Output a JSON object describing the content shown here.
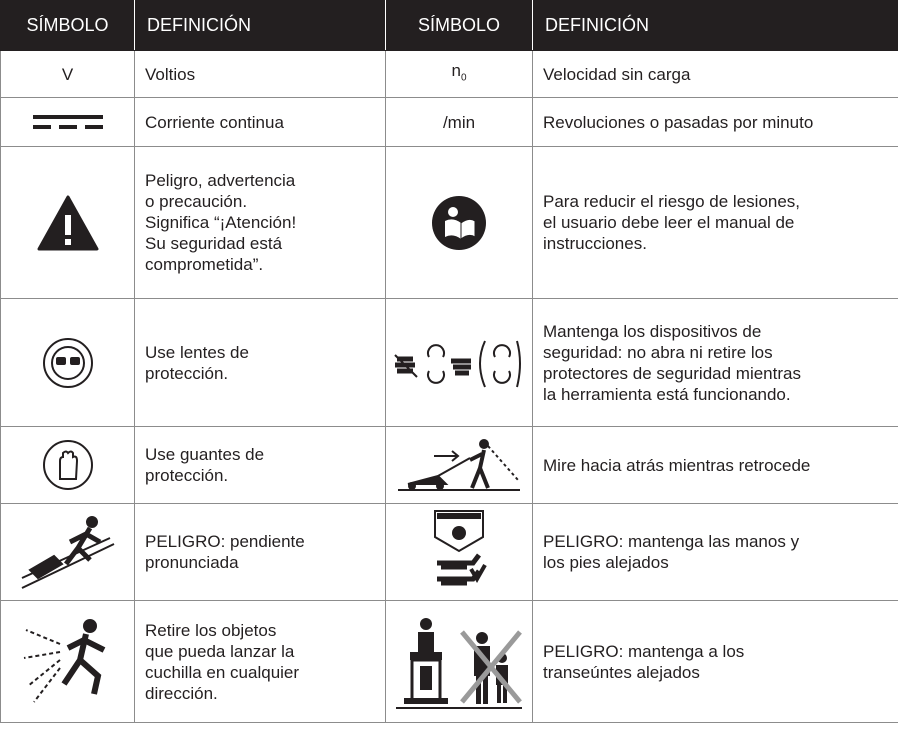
{
  "table": {
    "header": [
      "SÍMBOLO",
      "DEFINICIÓN",
      "SÍMBOLO",
      "DEFINICIÓN"
    ],
    "rows": [
      {
        "left_symbol": "V",
        "left_definition": [
          "Voltios"
        ],
        "right_symbol": {
          "base": "n",
          "sub": "0"
        },
        "right_definition": [
          "Velocidad sin carga"
        ]
      },
      {
        "left_definition": [
          "Corriente continua"
        ],
        "right_symbol": "/min",
        "right_definition": [
          "Revoluciones o pasadas por minuto"
        ]
      },
      {
        "left_definition": [
          "Peligro, advertencia",
          "o precaución.",
          "Significa “¡Atención!",
          "Su seguridad está",
          "comprometida”."
        ],
        "right_definition": [
          "Para reducir el riesgo de lesiones,",
          "el usuario debe leer el manual de",
          "instrucciones."
        ]
      },
      {
        "left_definition": [
          "Use lentes de",
          "protección."
        ],
        "right_definition": [
          "Mantenga los dispositivos de",
          "seguridad: no abra ni retire los",
          "protectores de seguridad mientras",
          "la herramienta está funcionando."
        ]
      },
      {
        "left_definition": [
          "Use guantes de",
          "protección."
        ],
        "right_definition": [
          "Mire hacia atrás mientras retrocede"
        ]
      },
      {
        "left_definition": [
          "PELIGRO: pendiente",
          "pronunciada"
        ],
        "right_definition": [
          "PELIGRO: mantenga las manos y",
          "los pies alejados"
        ]
      },
      {
        "left_definition": [
          "Retire los objetos",
          "que pueda lanzar la",
          "cuchilla en cualquier",
          "dirección."
        ],
        "right_definition": [
          "PELIGRO: mantenga a los",
          "transeúntes alejados"
        ]
      }
    ]
  }
}
